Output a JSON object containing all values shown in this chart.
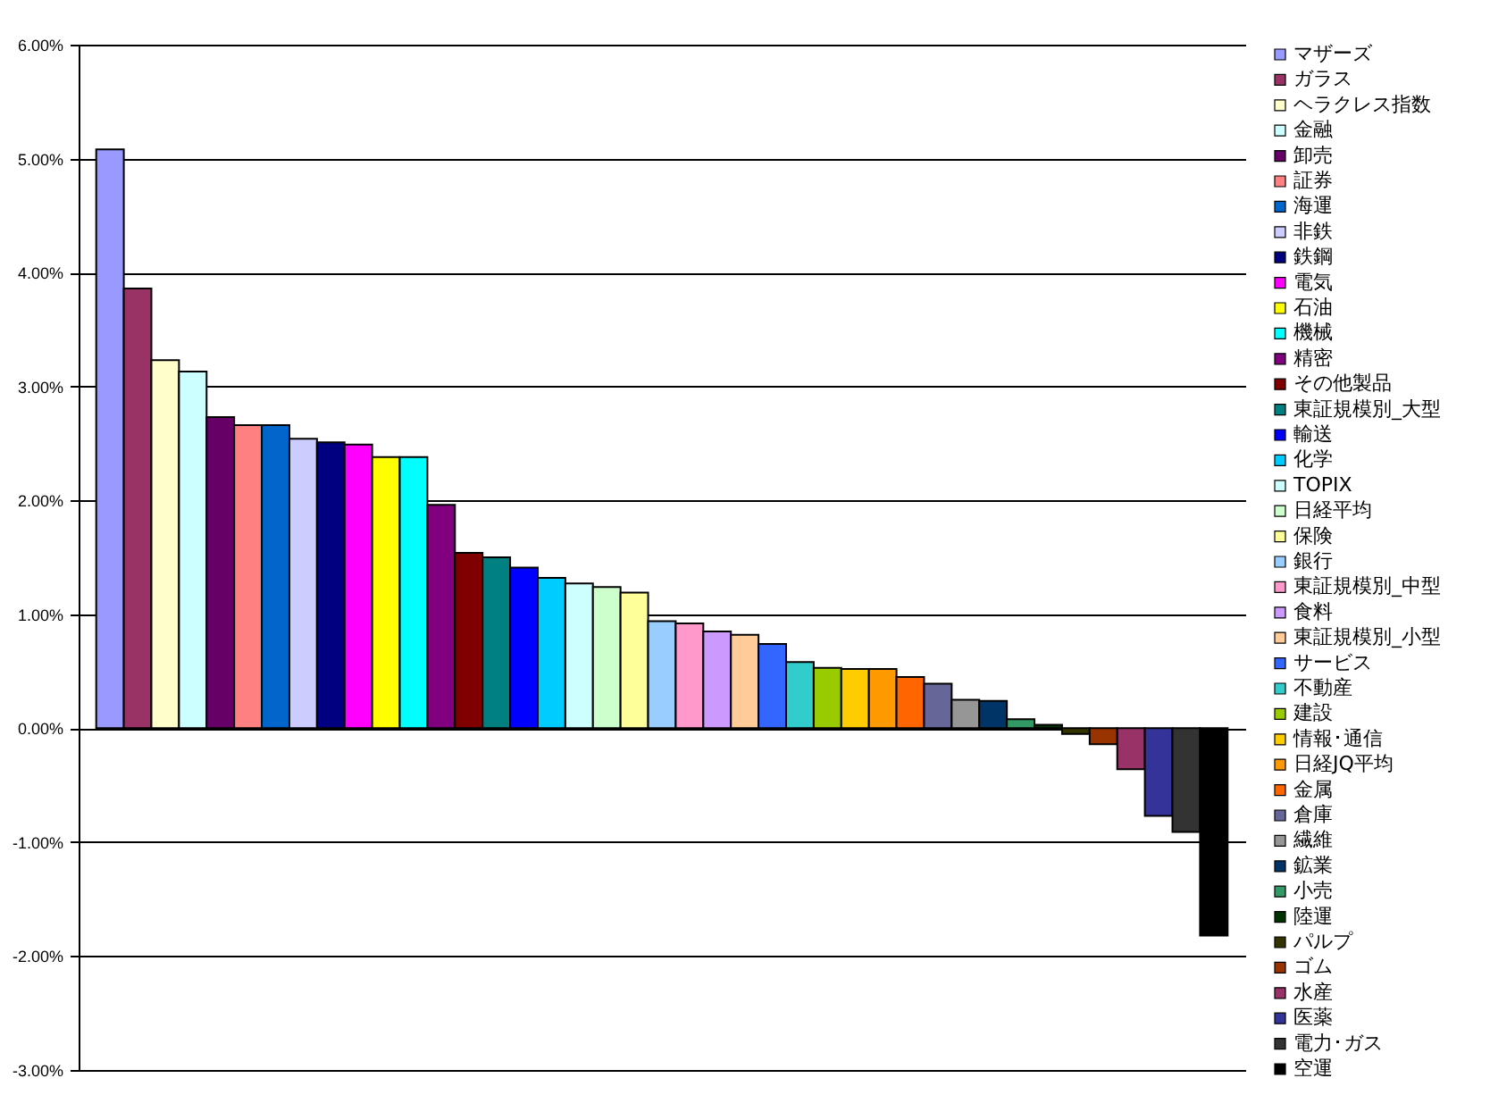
{
  "chart_data": {
    "type": "bar",
    "categories": [
      null
    ],
    "series": [
      {
        "name": "マザーズ",
        "color": "#9999ff",
        "values": [
          5.08
        ]
      },
      {
        "name": "ガラス",
        "color": "#993366",
        "values": [
          3.86
        ]
      },
      {
        "name": "ヘラクレス指数",
        "color": "#ffffcc",
        "values": [
          3.23
        ]
      },
      {
        "name": "金融",
        "color": "#ccffff",
        "values": [
          3.13
        ]
      },
      {
        "name": "卸売",
        "color": "#660066",
        "values": [
          2.73
        ]
      },
      {
        "name": "証券",
        "color": "#ff8080",
        "values": [
          2.66
        ]
      },
      {
        "name": "海運",
        "color": "#0066cc",
        "values": [
          2.66
        ]
      },
      {
        "name": "非鉄",
        "color": "#ccccff",
        "values": [
          2.54
        ]
      },
      {
        "name": "鉄鋼",
        "color": "#000080",
        "values": [
          2.51
        ]
      },
      {
        "name": "電気",
        "color": "#ff00ff",
        "values": [
          2.49
        ]
      },
      {
        "name": "石油",
        "color": "#ffff00",
        "values": [
          2.38
        ]
      },
      {
        "name": "機械",
        "color": "#00ffff",
        "values": [
          2.38
        ]
      },
      {
        "name": "精密",
        "color": "#800080",
        "values": [
          1.96
        ]
      },
      {
        "name": "その他製品",
        "color": "#800000",
        "values": [
          1.54
        ]
      },
      {
        "name": "東証規模別_大型",
        "color": "#008080",
        "values": [
          1.5
        ]
      },
      {
        "name": "輸送",
        "color": "#0000ff",
        "values": [
          1.41
        ]
      },
      {
        "name": "化学",
        "color": "#00ccff",
        "values": [
          1.32
        ]
      },
      {
        "name": "TOPIX",
        "color": "#ccfffe",
        "values": [
          1.27
        ]
      },
      {
        "name": "日経平均",
        "color": "#ccffcc",
        "values": [
          1.24
        ]
      },
      {
        "name": "保険",
        "color": "#ffff99",
        "values": [
          1.19
        ]
      },
      {
        "name": "銀行",
        "color": "#99ccff",
        "values": [
          0.94
        ]
      },
      {
        "name": "東証規模別_中型",
        "color": "#ff99cc",
        "values": [
          0.92
        ]
      },
      {
        "name": "食料",
        "color": "#cc99ff",
        "values": [
          0.85
        ]
      },
      {
        "name": "東証規模別_小型",
        "color": "#ffcc99",
        "values": [
          0.82
        ]
      },
      {
        "name": "サービス",
        "color": "#3366ff",
        "values": [
          0.74
        ]
      },
      {
        "name": "不動産",
        "color": "#33cccc",
        "values": [
          0.58
        ]
      },
      {
        "name": "建設",
        "color": "#99cc00",
        "values": [
          0.53
        ]
      },
      {
        "name": "情報･通信",
        "color": "#ffcc00",
        "values": [
          0.52
        ]
      },
      {
        "name": "日経JQ平均",
        "color": "#ff9900",
        "values": [
          0.52
        ]
      },
      {
        "name": "金属",
        "color": "#ff6600",
        "values": [
          0.45
        ]
      },
      {
        "name": "倉庫",
        "color": "#666699",
        "values": [
          0.39
        ]
      },
      {
        "name": "繊維",
        "color": "#969696",
        "values": [
          0.25
        ]
      },
      {
        "name": "鉱業",
        "color": "#003366",
        "values": [
          0.24
        ]
      },
      {
        "name": "小売",
        "color": "#339966",
        "values": [
          0.08
        ]
      },
      {
        "name": "陸運",
        "color": "#003300",
        "values": [
          0.03
        ]
      },
      {
        "name": "パルプ",
        "color": "#333300",
        "values": [
          -0.05
        ]
      },
      {
        "name": "ゴム",
        "color": "#993300",
        "values": [
          -0.14
        ]
      },
      {
        "name": "水産",
        "color": "#993367",
        "values": [
          -0.36
        ]
      },
      {
        "name": "医薬",
        "color": "#333399",
        "values": [
          -0.77
        ]
      },
      {
        "name": "電力･ガス",
        "color": "#333333",
        "values": [
          -0.91
        ]
      },
      {
        "name": "空運",
        "color": "#000000",
        "values": [
          -1.82
        ]
      }
    ],
    "ylim": [
      -3,
      6
    ],
    "yticks": [
      {
        "value": -3,
        "label": "-3.00%"
      },
      {
        "value": -2,
        "label": "-2.00%"
      },
      {
        "value": -1,
        "label": "-1.00%"
      },
      {
        "value": 0,
        "label": "0.00%"
      },
      {
        "value": 1,
        "label": "1.00%"
      },
      {
        "value": 2,
        "label": "2.00%"
      },
      {
        "value": 3,
        "label": "3.00%"
      },
      {
        "value": 4,
        "label": "4.00%"
      },
      {
        "value": 5,
        "label": "5.00%"
      },
      {
        "value": 6,
        "label": "6.00%"
      }
    ],
    "grid": "y",
    "legend": "right"
  }
}
